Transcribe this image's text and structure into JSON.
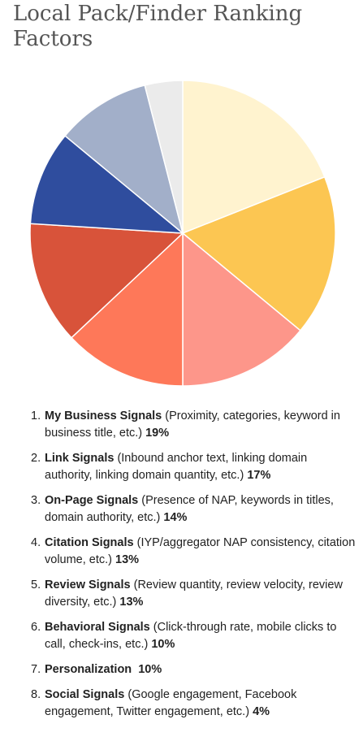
{
  "title": "Local Pack/Finder Ranking Factors",
  "chart_data": {
    "type": "pie",
    "title": "Local Pack/Finder Ranking Factors",
    "slices": [
      {
        "number": "1.",
        "name": "My Business Signals",
        "detail": "(Proximity, categories, keyword in business title, etc.)",
        "value_label": "19%",
        "value": 19,
        "color": "#FFF3CF"
      },
      {
        "number": "2.",
        "name": "Link Signals",
        "detail": "(Inbound anchor text, linking domain authority, linking domain quantity, etc.)",
        "value_label": "17%",
        "value": 17,
        "color": "#FCC652"
      },
      {
        "number": "3.",
        "name": "On-Page Signals",
        "detail": "(Presence of NAP, keywords in titles, domain authority, etc.)",
        "value_label": "14%",
        "value": 14,
        "color": "#FD968A"
      },
      {
        "number": "4.",
        "name": "Citation Signals",
        "detail": "(IYP/aggregator NAP consistency, citation volume, etc.)",
        "value_label": "13%",
        "value": 13,
        "color": "#FE7859"
      },
      {
        "number": "5.",
        "name": "Review Signals",
        "detail": "(Review quantity, review velocity, review diversity, etc.)",
        "value_label": "13%",
        "value": 13,
        "color": "#D8533A"
      },
      {
        "number": "6.",
        "name": "Behavioral Signals",
        "detail": "(Click-through rate, mobile clicks to call, check-ins, etc.)",
        "value_label": "10%",
        "value": 10,
        "color": "#2F4D9E"
      },
      {
        "number": "7.",
        "name": "Personalization",
        "detail": "",
        "value_label": "10%",
        "value": 10,
        "color": "#A2AFC9"
      },
      {
        "number": "8.",
        "name": "Social Signals",
        "detail": "(Google engagement, Facebook engagement, Twitter engagement, etc.)",
        "value_label": "4%",
        "value": 4,
        "color": "#EBEBEB"
      }
    ]
  }
}
